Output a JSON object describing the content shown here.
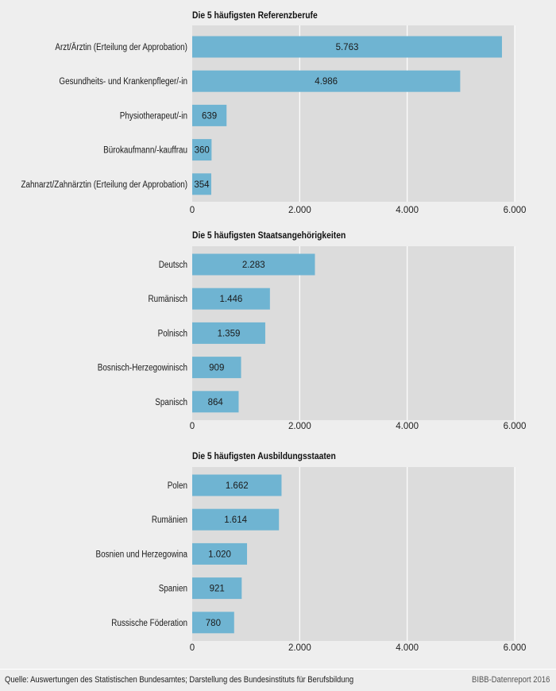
{
  "chart_data": [
    {
      "type": "bar",
      "orientation": "horizontal",
      "title": "Die 5 häufigsten Referenzberufe",
      "categories": [
        "Arzt/Ärztin (Erteilung der Approbation)",
        "Gesundheits- und Krankenpfleger/-in",
        "Physiotherapeut/-in",
        "Bürokaufmann/-kauffrau",
        "Zahnarzt/Zahnärztin (Erteilung der Approbation)"
      ],
      "values": [
        5763,
        4986,
        639,
        360,
        354
      ],
      "value_labels": [
        "5.763",
        "4.986",
        "639",
        "360",
        "354"
      ],
      "xlim": [
        0,
        6000
      ],
      "ticks": [
        0,
        2000,
        4000,
        6000
      ],
      "tick_labels": [
        "0",
        "2.000",
        "4.000",
        "6.000"
      ],
      "grid": true
    },
    {
      "type": "bar",
      "orientation": "horizontal",
      "title": "Die 5 häufigsten Staatsangehörigkeiten",
      "categories": [
        "Deutsch",
        "Rumänisch",
        "Polnisch",
        "Bosnisch-Herzegowinisch",
        "Spanisch"
      ],
      "values": [
        2283,
        1446,
        1359,
        909,
        864
      ],
      "value_labels": [
        "2.283",
        "1.446",
        "1.359",
        "909",
        "864"
      ],
      "xlim": [
        0,
        6000
      ],
      "ticks": [
        0,
        2000,
        4000,
        6000
      ],
      "tick_labels": [
        "0",
        "2.000",
        "4.000",
        "6.000"
      ],
      "grid": true
    },
    {
      "type": "bar",
      "orientation": "horizontal",
      "title": "Die 5 häufigsten Ausbildungsstaaten",
      "categories": [
        "Polen",
        "Rumänien",
        "Bosnien und Herzegowina",
        "Spanien",
        "Russische Föderation"
      ],
      "values": [
        1662,
        1614,
        1020,
        921,
        780
      ],
      "value_labels": [
        "1.662",
        "1.614",
        "1.020",
        "921",
        "780"
      ],
      "xlim": [
        0,
        6000
      ],
      "ticks": [
        0,
        2000,
        4000,
        6000
      ],
      "tick_labels": [
        "0",
        "2.000",
        "4.000",
        "6.000"
      ],
      "grid": true
    }
  ],
  "colors": {
    "bar": "#6fb4d2",
    "plot_background": "#dcdcdc",
    "page_background": "#eeeeee",
    "gridline": "#ffffff"
  },
  "footer": {
    "source": "Quelle: Auswertungen des Statistischen Bundesamtes; Darstellung des Bundesinstituts für Berufsbildung",
    "brand": "BIBB-Datenreport 2016"
  }
}
